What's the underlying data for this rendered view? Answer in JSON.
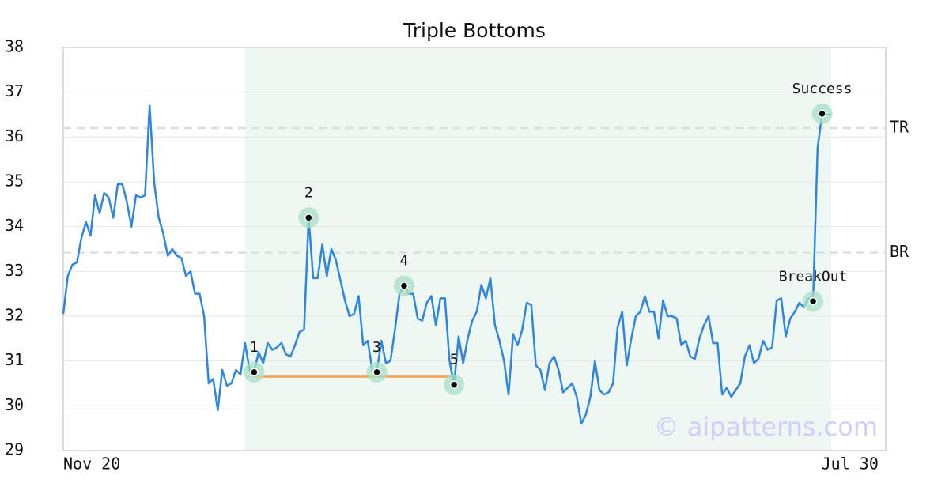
{
  "chart_data": {
    "type": "line",
    "title": "Triple Bottoms",
    "color": "#2e86de",
    "x": [
      0,
      1,
      2,
      3,
      4,
      5,
      6,
      7,
      8,
      9,
      10,
      11,
      12,
      13,
      14,
      15,
      16,
      17,
      18,
      19,
      20,
      21,
      22,
      23,
      24,
      25,
      26,
      27,
      28,
      29,
      30,
      31,
      32,
      33,
      34,
      35,
      36,
      37,
      38,
      39,
      40,
      41,
      42,
      43,
      44,
      45,
      46,
      47,
      48,
      49,
      50,
      51,
      52,
      53,
      54,
      55,
      56,
      57,
      58,
      59,
      60,
      61,
      62,
      63,
      64,
      65,
      66,
      67,
      68,
      69,
      70,
      71,
      72,
      73,
      74,
      75,
      76,
      77,
      78,
      79,
      80,
      81,
      82,
      83,
      84,
      85,
      86,
      87,
      88,
      89,
      90,
      91,
      92,
      93,
      94,
      95,
      96,
      97,
      98,
      99,
      100,
      101,
      102,
      103,
      104,
      105,
      106,
      107,
      108,
      109,
      110,
      111,
      112,
      113,
      114,
      115,
      116,
      117,
      118,
      119,
      120,
      121,
      122,
      123,
      124,
      125,
      126,
      127,
      128,
      129,
      130,
      131,
      132,
      133,
      134,
      135,
      136,
      137,
      138,
      139,
      140,
      141,
      142,
      143,
      144,
      145,
      146,
      147,
      148,
      149,
      150,
      151,
      152,
      153,
      154,
      155,
      156,
      157,
      158,
      159,
      160,
      161,
      162,
      163,
      164,
      165,
      166,
      167,
      168,
      169
    ],
    "values": [
      32.05,
      32.9,
      33.15,
      33.2,
      33.75,
      34.1,
      33.8,
      34.7,
      34.3,
      34.75,
      34.65,
      34.2,
      34.95,
      34.95,
      34.55,
      34.0,
      34.7,
      34.65,
      34.7,
      36.7,
      35.0,
      34.2,
      33.85,
      33.35,
      33.5,
      33.35,
      33.3,
      32.9,
      33.0,
      32.5,
      32.5,
      32.0,
      30.5,
      30.6,
      29.9,
      30.8,
      30.45,
      30.5,
      30.8,
      30.7,
      31.4,
      30.8,
      30.75,
      31.2,
      30.95,
      31.4,
      31.25,
      31.3,
      31.4,
      31.15,
      31.1,
      31.35,
      31.65,
      31.7,
      34.2,
      32.85,
      32.85,
      33.6,
      32.9,
      33.5,
      33.25,
      32.8,
      32.35,
      32.0,
      32.05,
      32.45,
      31.35,
      31.45,
      30.8,
      30.75,
      31.45,
      30.95,
      31.0,
      31.7,
      32.5,
      32.68,
      32.5,
      32.5,
      31.95,
      31.9,
      32.3,
      32.45,
      31.8,
      32.4,
      32.4,
      31.0,
      30.47,
      31.55,
      30.95,
      31.5,
      31.9,
      32.1,
      32.7,
      32.4,
      32.85,
      31.8,
      31.45,
      31.0,
      30.25,
      31.6,
      31.35,
      31.7,
      32.3,
      32.25,
      30.9,
      30.8,
      30.35,
      30.95,
      31.1,
      30.8,
      30.3,
      30.4,
      30.5,
      30.2,
      29.6,
      29.8,
      30.2,
      31.0,
      30.35,
      30.25,
      30.3,
      30.5,
      31.75,
      32.1,
      30.9,
      31.5,
      32.0,
      32.1,
      32.45,
      32.1,
      32.1,
      31.5,
      32.35,
      32.0,
      32.0,
      31.95,
      31.35,
      31.45,
      31.1,
      31.05,
      31.5,
      31.8,
      32.0,
      31.4,
      31.4,
      30.25,
      30.4,
      30.2,
      30.35,
      30.5,
      31.1,
      31.35,
      30.95,
      31.05,
      31.45,
      31.25,
      31.3,
      32.35,
      32.4,
      31.55,
      31.95,
      32.1,
      32.3,
      32.2,
      32.4,
      32.33,
      35.75,
      36.52,
      36.5,
      36.5
    ],
    "xlim": [
      0,
      181
    ],
    "xticks": [
      {
        "value": 0,
        "label": "Nov 20"
      },
      {
        "value": 174,
        "label": "Jul 30"
      }
    ],
    "ylim": [
      29,
      38
    ],
    "yticks": [
      29,
      30,
      31,
      32,
      33,
      34,
      35,
      36,
      37,
      38
    ],
    "grid": true,
    "highlight_range": [
      40,
      169
    ],
    "highlight_color": "#eef7f2",
    "reference_lines": [
      {
        "label": "TR",
        "value": 36.2
      },
      {
        "label": "BR",
        "value": 33.42
      }
    ],
    "support_line": {
      "x": [
        42,
        86
      ],
      "value": 30.65,
      "color": "#f0a050"
    },
    "annotations": [
      {
        "label": "1",
        "x": 42,
        "y": 30.75
      },
      {
        "label": "2",
        "x": 54,
        "y": 34.2
      },
      {
        "label": "3",
        "x": 69,
        "y": 30.75
      },
      {
        "label": "4",
        "x": 75,
        "y": 32.68
      },
      {
        "label": "5",
        "x": 86,
        "y": 30.47
      },
      {
        "label": "BreakOut",
        "x": 165,
        "y": 32.33
      },
      {
        "label": "Success",
        "x": 167,
        "y": 36.52
      }
    ],
    "watermark": "© aipatterns.com"
  }
}
